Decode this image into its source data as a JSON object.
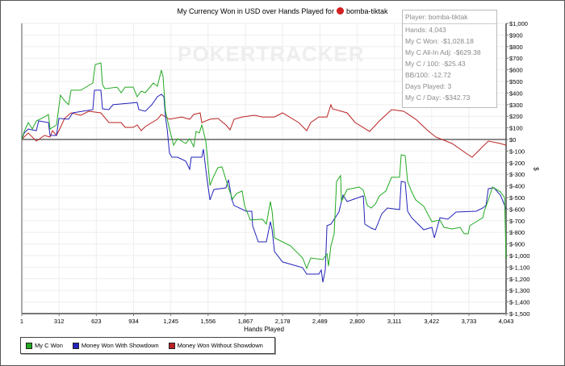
{
  "chart_data": {
    "type": "line",
    "title": "My Currency Won in USD over Hands Played for",
    "player": "bomba-tiktak",
    "xlabel": "Hands Played",
    "ylabel": "$",
    "xlim": [
      1,
      4043
    ],
    "ylim": [
      -1500,
      1000
    ],
    "x_ticks": [
      1,
      312,
      623,
      934,
      1245,
      1556,
      1867,
      2178,
      2489,
      2800,
      3111,
      3422,
      3733,
      4043
    ],
    "x_tick_labels": [
      "1",
      "312",
      "623",
      "934",
      "1,245",
      "1,556",
      "1,867",
      "2,178",
      "2,489",
      "2,800",
      "3,111",
      "3,422",
      "3,733",
      "4,043"
    ],
    "y_ticks": [
      1000,
      900,
      800,
      700,
      600,
      500,
      400,
      300,
      200,
      100,
      0,
      -100,
      -200,
      -300,
      -400,
      -500,
      -600,
      -700,
      -800,
      -900,
      -1000,
      -1100,
      -1200,
      -1300,
      -1400,
      -1500
    ],
    "y_tick_labels": [
      "$1,000",
      "$900",
      "$800",
      "$700",
      "$600",
      "$500",
      "$400",
      "$300",
      "$200",
      "$100",
      "$0",
      "$-100",
      "$-200",
      "$-300",
      "$-400",
      "$-500",
      "$-600",
      "$-700",
      "$-800",
      "$-900",
      "$-1,000",
      "$-1,100",
      "$-1,200",
      "$-1,300",
      "$-1,400",
      "$-1,500"
    ],
    "y_axis_side": "right",
    "grid": true,
    "legend_position": "bottom-left",
    "series": [
      {
        "name": "My C Won",
        "color": "#22aa22",
        "points": [
          [
            1,
            0
          ],
          [
            21,
            69
          ],
          [
            55,
            146
          ],
          [
            89,
            90
          ],
          [
            122,
            160
          ],
          [
            190,
            194
          ],
          [
            223,
            215
          ],
          [
            237,
            90
          ],
          [
            291,
            125
          ],
          [
            304,
            229
          ],
          [
            324,
            382
          ],
          [
            358,
            333
          ],
          [
            392,
            299
          ],
          [
            412,
            424
          ],
          [
            493,
            424
          ],
          [
            594,
            486
          ],
          [
            614,
            646
          ],
          [
            661,
            660
          ],
          [
            675,
            472
          ],
          [
            695,
            437
          ],
          [
            796,
            451
          ],
          [
            830,
            403
          ],
          [
            863,
            451
          ],
          [
            931,
            451
          ],
          [
            964,
            368
          ],
          [
            998,
            417
          ],
          [
            1032,
            403
          ],
          [
            1099,
            486
          ],
          [
            1133,
            458
          ],
          [
            1166,
            597
          ],
          [
            1180,
            542
          ],
          [
            1200,
            243
          ],
          [
            1234,
            90
          ],
          [
            1268,
            -49
          ],
          [
            1301,
            7
          ],
          [
            1369,
            -35
          ],
          [
            1402,
            7
          ],
          [
            1436,
            -62
          ],
          [
            1456,
            69
          ],
          [
            1483,
            56
          ],
          [
            1503,
            125
          ],
          [
            1537,
            -14
          ],
          [
            1550,
            -153
          ],
          [
            1571,
            -396
          ],
          [
            1604,
            -312
          ],
          [
            1638,
            -243
          ],
          [
            1672,
            -236
          ],
          [
            1726,
            -417
          ],
          [
            1759,
            -514
          ],
          [
            1793,
            -465
          ],
          [
            1840,
            -444
          ],
          [
            1860,
            -569
          ],
          [
            1908,
            -694
          ],
          [
            2009,
            -687
          ],
          [
            2042,
            -729
          ],
          [
            2076,
            -535
          ],
          [
            2090,
            -618
          ],
          [
            2110,
            -847
          ],
          [
            2244,
            -917
          ],
          [
            2345,
            -1021
          ],
          [
            2379,
            -1111
          ],
          [
            2413,
            -1021
          ],
          [
            2514,
            -1035
          ],
          [
            2548,
            -986
          ],
          [
            2561,
            -1090
          ],
          [
            2581,
            -917
          ],
          [
            2608,
            -812
          ],
          [
            2628,
            -361
          ],
          [
            2662,
            -312
          ],
          [
            2669,
            -535
          ],
          [
            2716,
            -431
          ],
          [
            2817,
            -410
          ],
          [
            2851,
            -437
          ],
          [
            2885,
            -569
          ],
          [
            2918,
            -590
          ],
          [
            2952,
            -556
          ],
          [
            2986,
            -486
          ],
          [
            3040,
            -444
          ],
          [
            3087,
            -326
          ],
          [
            3154,
            -326
          ],
          [
            3168,
            -132
          ],
          [
            3201,
            -139
          ],
          [
            3221,
            -361
          ],
          [
            3255,
            -451
          ],
          [
            3289,
            -521
          ],
          [
            3356,
            -576
          ],
          [
            3424,
            -708
          ],
          [
            3491,
            -694
          ],
          [
            3525,
            -757
          ],
          [
            3592,
            -771
          ],
          [
            3659,
            -757
          ],
          [
            3693,
            -812
          ],
          [
            3727,
            -812
          ],
          [
            3740,
            -743
          ],
          [
            3794,
            -708
          ],
          [
            3848,
            -674
          ],
          [
            3861,
            -618
          ],
          [
            3895,
            -521
          ],
          [
            3929,
            -410
          ],
          [
            3996,
            -451
          ],
          [
            4030,
            -500
          ],
          [
            4043,
            -1028.18
          ]
        ]
      },
      {
        "name": "Money Won With Showdown",
        "color": "#2222bb",
        "points": [
          [
            1,
            0
          ],
          [
            21,
            56
          ],
          [
            55,
            90
          ],
          [
            122,
            76
          ],
          [
            142,
            160
          ],
          [
            223,
            146
          ],
          [
            237,
            35
          ],
          [
            291,
            35
          ],
          [
            311,
            181
          ],
          [
            392,
            174
          ],
          [
            426,
            229
          ],
          [
            594,
            257
          ],
          [
            607,
            424
          ],
          [
            661,
            424
          ],
          [
            675,
            264
          ],
          [
            728,
            257
          ],
          [
            762,
            299
          ],
          [
            964,
            319
          ],
          [
            978,
            257
          ],
          [
            1032,
            243
          ],
          [
            1086,
            299
          ],
          [
            1133,
            368
          ],
          [
            1166,
            389
          ],
          [
            1187,
            368
          ],
          [
            1200,
            194
          ],
          [
            1214,
            90
          ],
          [
            1234,
            -118
          ],
          [
            1254,
            -153
          ],
          [
            1301,
            -153
          ],
          [
            1369,
            -187
          ],
          [
            1402,
            -257
          ],
          [
            1416,
            -153
          ],
          [
            1503,
            -153
          ],
          [
            1517,
            -83
          ],
          [
            1537,
            -257
          ],
          [
            1550,
            -361
          ],
          [
            1571,
            -521
          ],
          [
            1604,
            -431
          ],
          [
            1705,
            -417
          ],
          [
            1726,
            -347
          ],
          [
            1753,
            -514
          ],
          [
            1773,
            -569
          ],
          [
            1874,
            -618
          ],
          [
            1921,
            -618
          ],
          [
            1928,
            -743
          ],
          [
            1975,
            -882
          ],
          [
            2042,
            -882
          ],
          [
            2076,
            -708
          ],
          [
            2090,
            -778
          ],
          [
            2110,
            -965
          ],
          [
            2177,
            -1055
          ],
          [
            2345,
            -1104
          ],
          [
            2379,
            -1160
          ],
          [
            2480,
            -1160
          ],
          [
            2500,
            -1125
          ],
          [
            2514,
            -1229
          ],
          [
            2534,
            -1125
          ],
          [
            2548,
            -743
          ],
          [
            2581,
            -729
          ],
          [
            2648,
            -625
          ],
          [
            2682,
            -479
          ],
          [
            2716,
            -535
          ],
          [
            2851,
            -486
          ],
          [
            2864,
            -729
          ],
          [
            2918,
            -764
          ],
          [
            2952,
            -778
          ],
          [
            3006,
            -639
          ],
          [
            3053,
            -590
          ],
          [
            3154,
            -604
          ],
          [
            3168,
            -361
          ],
          [
            3201,
            -368
          ],
          [
            3221,
            -618
          ],
          [
            3255,
            -674
          ],
          [
            3356,
            -778
          ],
          [
            3424,
            -757
          ],
          [
            3444,
            -847
          ],
          [
            3491,
            -674
          ],
          [
            3558,
            -687
          ],
          [
            3625,
            -625
          ],
          [
            3794,
            -618
          ],
          [
            3848,
            -590
          ],
          [
            3875,
            -569
          ],
          [
            3895,
            -424
          ],
          [
            3942,
            -417
          ],
          [
            3996,
            -479
          ],
          [
            4043,
            -600
          ]
        ]
      },
      {
        "name": "Money Won Without Showdown",
        "color": "#bb2222",
        "points": [
          [
            1,
            0
          ],
          [
            55,
            56
          ],
          [
            122,
            -14
          ],
          [
            190,
            35
          ],
          [
            237,
            21
          ],
          [
            257,
            76
          ],
          [
            291,
            35
          ],
          [
            324,
            104
          ],
          [
            358,
            181
          ],
          [
            412,
            229
          ],
          [
            493,
            208
          ],
          [
            560,
            243
          ],
          [
            661,
            229
          ],
          [
            728,
            146
          ],
          [
            830,
            146
          ],
          [
            863,
            104
          ],
          [
            931,
            104
          ],
          [
            964,
            125
          ],
          [
            998,
            76
          ],
          [
            1032,
            111
          ],
          [
            1133,
            174
          ],
          [
            1166,
            215
          ],
          [
            1234,
            174
          ],
          [
            1335,
            194
          ],
          [
            1402,
            174
          ],
          [
            1436,
            215
          ],
          [
            1490,
            229
          ],
          [
            1503,
            146
          ],
          [
            1571,
            174
          ],
          [
            1638,
            181
          ],
          [
            1705,
            125
          ],
          [
            1739,
            83
          ],
          [
            1773,
            174
          ],
          [
            1840,
            194
          ],
          [
            1941,
            208
          ],
          [
            2009,
            194
          ],
          [
            2110,
            194
          ],
          [
            2177,
            229
          ],
          [
            2312,
            146
          ],
          [
            2379,
            76
          ],
          [
            2413,
            146
          ],
          [
            2480,
            194
          ],
          [
            2548,
            194
          ],
          [
            2581,
            299
          ],
          [
            2594,
            264
          ],
          [
            2716,
            229
          ],
          [
            2783,
            146
          ],
          [
            2904,
            69
          ],
          [
            2986,
            160
          ],
          [
            3087,
            257
          ],
          [
            3188,
            243
          ],
          [
            3289,
            174
          ],
          [
            3390,
            76
          ],
          [
            3457,
            21
          ],
          [
            3592,
            -35
          ],
          [
            3727,
            -132
          ],
          [
            3760,
            -153
          ],
          [
            3827,
            -83
          ],
          [
            3895,
            -14
          ],
          [
            3996,
            -35
          ],
          [
            4043,
            -49
          ]
        ]
      }
    ]
  },
  "watermark": "POKERTRACKER",
  "info_box": {
    "player": "Player: bomba-tiktak",
    "lines": [
      "Hands: 4,043",
      "My C Won: -$1,028.18",
      "My C All-In Adj: -$629.38",
      "My C / 100: -$25.43",
      "BB/100: -12.72",
      "Days Played: 3",
      "My C / Day: -$342.73"
    ]
  },
  "legend": [
    {
      "label": "My C Won",
      "color": "#22aa22"
    },
    {
      "label": "Money Won With Showdown",
      "color": "#2222bb"
    },
    {
      "label": "Money Won Without Showdown",
      "color": "#bb2222"
    }
  ]
}
